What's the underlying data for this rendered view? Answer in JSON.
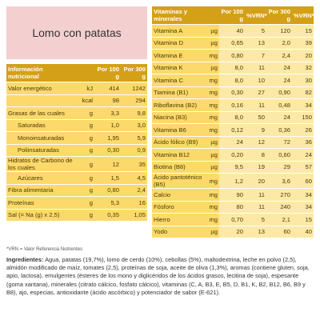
{
  "title": "Lomo con patatas",
  "nutrition": {
    "header": [
      "Información nutricional",
      null,
      "Por 100 g",
      "Por 300 g"
    ],
    "rows": [
      [
        "Valor energético",
        "kJ",
        "414",
        "1242"
      ],
      [
        null,
        "kcal",
        "98",
        "294"
      ],
      [
        "Grasas de las cuales",
        "g",
        "3,3",
        "9,8"
      ],
      [
        "Saturadas",
        "g",
        "1,0",
        "3,0"
      ],
      [
        "Monoinsaturadas",
        "g",
        "1,95",
        "5,9"
      ],
      [
        "Poliinsaturadas",
        "g",
        "0,30",
        "0,9"
      ],
      [
        "Hidratos de Carbono de los cuales",
        "g",
        "12",
        "35"
      ],
      [
        "Azúcares",
        "g",
        "1,5",
        "4,5"
      ],
      [
        "Fibra alimentaria",
        "g",
        "0,80",
        "2,4"
      ],
      [
        "Proteínas",
        "g",
        "5,3",
        "16"
      ],
      [
        "Sal (= Na (g) x 2,5)",
        "g",
        "0,35",
        "1,05"
      ]
    ]
  },
  "vitamins": {
    "header": [
      "Vitaminas y minerales",
      null,
      "Por 100 g",
      "%VRN*",
      "Por 300 g",
      "%VRN*"
    ],
    "rows": [
      [
        "Vitamina A",
        "µg",
        "40",
        "5",
        "120",
        "15"
      ],
      [
        "Vitamina D",
        "µg",
        "0,65",
        "13",
        "2,0",
        "39"
      ],
      [
        "Vitamina E",
        "mg",
        "0,80",
        "7",
        "2,4",
        "20"
      ],
      [
        "Vitamina K",
        "µg",
        "8,0",
        "11",
        "24",
        "32"
      ],
      [
        "Vitamina C",
        "mg",
        "8,0",
        "10",
        "24",
        "30"
      ],
      [
        "Tiamina (B1)",
        "mg",
        "0,30",
        "27",
        "0,90",
        "82"
      ],
      [
        "Riboflavina (B2)",
        "mg",
        "0,16",
        "11",
        "0,48",
        "34"
      ],
      [
        "Niacina (B3)",
        "mg",
        "8,0",
        "50",
        "24",
        "150"
      ],
      [
        "Vitamina B6",
        "mg",
        "0,12",
        "9",
        "0,36",
        "26"
      ],
      [
        "Ácido fólico (B9)",
        "µg",
        "24",
        "12",
        "72",
        "36"
      ],
      [
        "Vitamina B12",
        "µg",
        "0,20",
        "8",
        "0,60",
        "24"
      ],
      [
        "Biotina (B8)",
        "µg",
        "9,5",
        "19",
        "29",
        "57"
      ],
      [
        "Ácido pantoténico (B5)",
        "mg",
        "1,2",
        "20",
        "3,6",
        "60"
      ],
      [
        "Calcio",
        "mg",
        "90",
        "11",
        "270",
        "34"
      ],
      [
        "Fósforo",
        "mg",
        "80",
        "11",
        "240",
        "34"
      ],
      [
        "Hierro",
        "mg",
        "0,70",
        "5",
        "2,1",
        "15"
      ],
      [
        "Yodo",
        "µg",
        "20",
        "13",
        "60",
        "40"
      ]
    ]
  },
  "footnote": "*VRN = Valor Referencia Nutrientes",
  "ingredients": {
    "label": "Ingredientes:",
    "text": "Agua, patatas (19,7%), lomo de cerdo (10%), cebollas (5%), maltodextrina, leche en polvo (2,5), almidón modificado de maíz, tomates (2,5), proteínas de soja, aceite de oliva (1,3%), aromas (contiene gluten, soja, apio, lactosa), emulgentes (ésteres de los mono y diglicéridos de los ácidos grasos, lecitina de soja), espesante (goma xantana), minerales (citrato cálcico, fosfato cálcico), vitaminas (C, A, B3, E, B5, D, B1, K, B2, B12, B6, B9 y B8), ajo, especias, antioxidante (ácido ascórbico) y potenciador de sabor (E-621)."
  }
}
